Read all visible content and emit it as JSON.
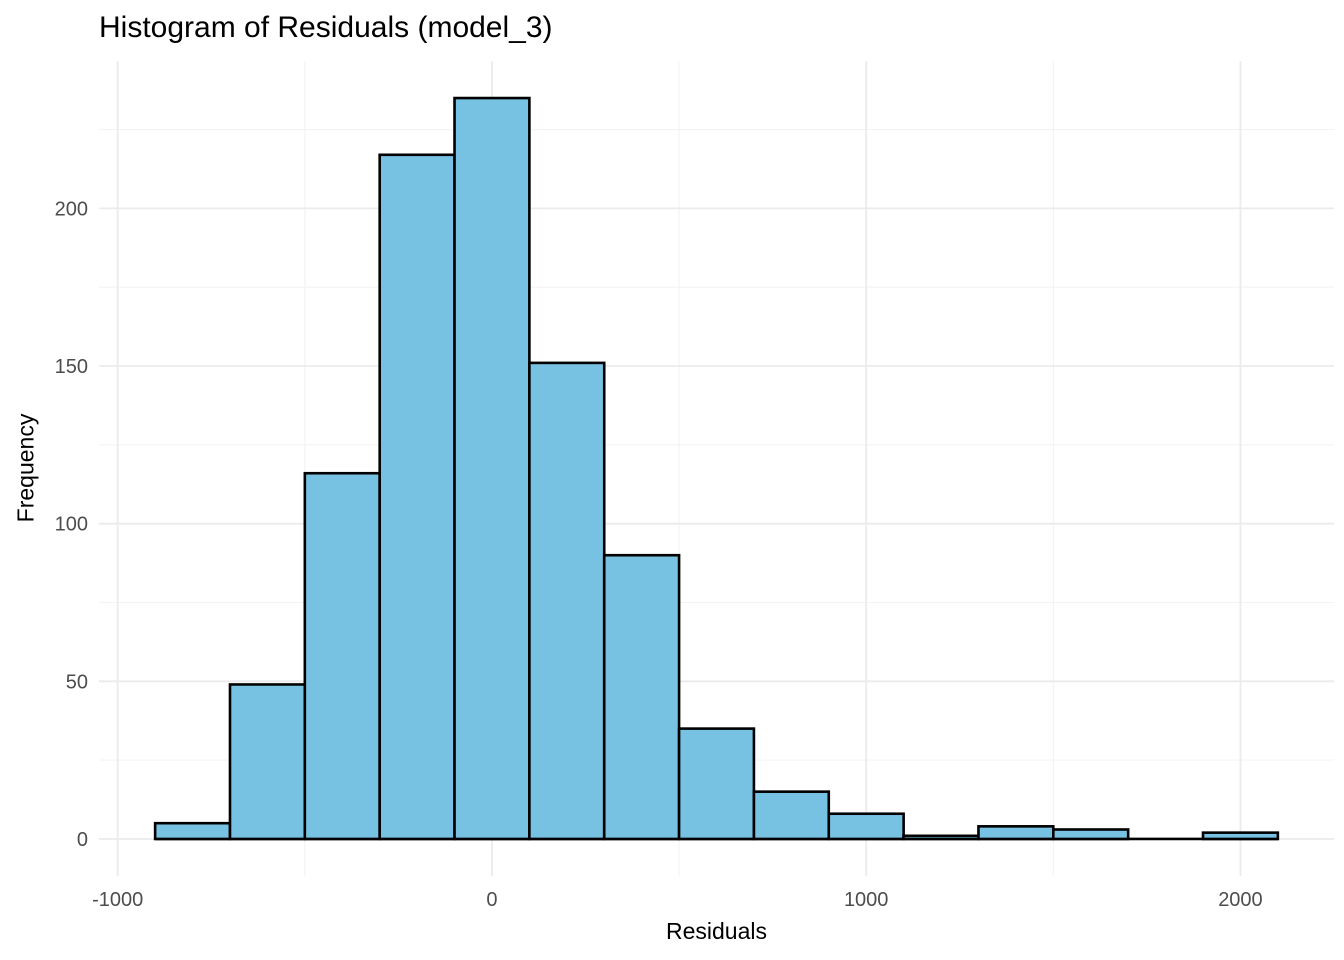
{
  "chart_data": {
    "type": "bar",
    "variant": "histogram",
    "title": "Histogram of Residuals (model_3)",
    "xlabel": "Residuals",
    "ylabel": "Frequency",
    "bin_width": 200,
    "bin_edges": [
      -900,
      -700,
      -500,
      -300,
      -100,
      100,
      300,
      500,
      700,
      900,
      1100,
      1300,
      1500,
      1700,
      1900,
      2100
    ],
    "counts": [
      5,
      49,
      116,
      217,
      235,
      151,
      90,
      35,
      15,
      8,
      1,
      4,
      3,
      0,
      2
    ],
    "x_ticks": [
      -1000,
      0,
      1000,
      2000
    ],
    "x_tick_labels": [
      "-1000",
      "0",
      "1000",
      "2000"
    ],
    "x_minor_ticks": [
      -500,
      500,
      1500
    ],
    "y_ticks": [
      0,
      50,
      100,
      150,
      200
    ],
    "y_tick_labels": [
      "0",
      "50",
      "100",
      "150",
      "200"
    ],
    "y_minor_ticks": [
      25,
      75,
      125,
      175,
      225
    ],
    "xlim": [
      -1050,
      2250
    ],
    "ylim": [
      -11.75,
      246.75
    ],
    "grid": true,
    "legend": false,
    "colors": {
      "bar_fill": "#77C1E2",
      "bar_stroke": "#000000",
      "grid_major": "#EBEBEB",
      "grid_minor": "#F3F3F3",
      "tick_label": "#4D4D4D",
      "axis_title": "#000000",
      "title": "#000000",
      "background": "#FFFFFF"
    }
  }
}
